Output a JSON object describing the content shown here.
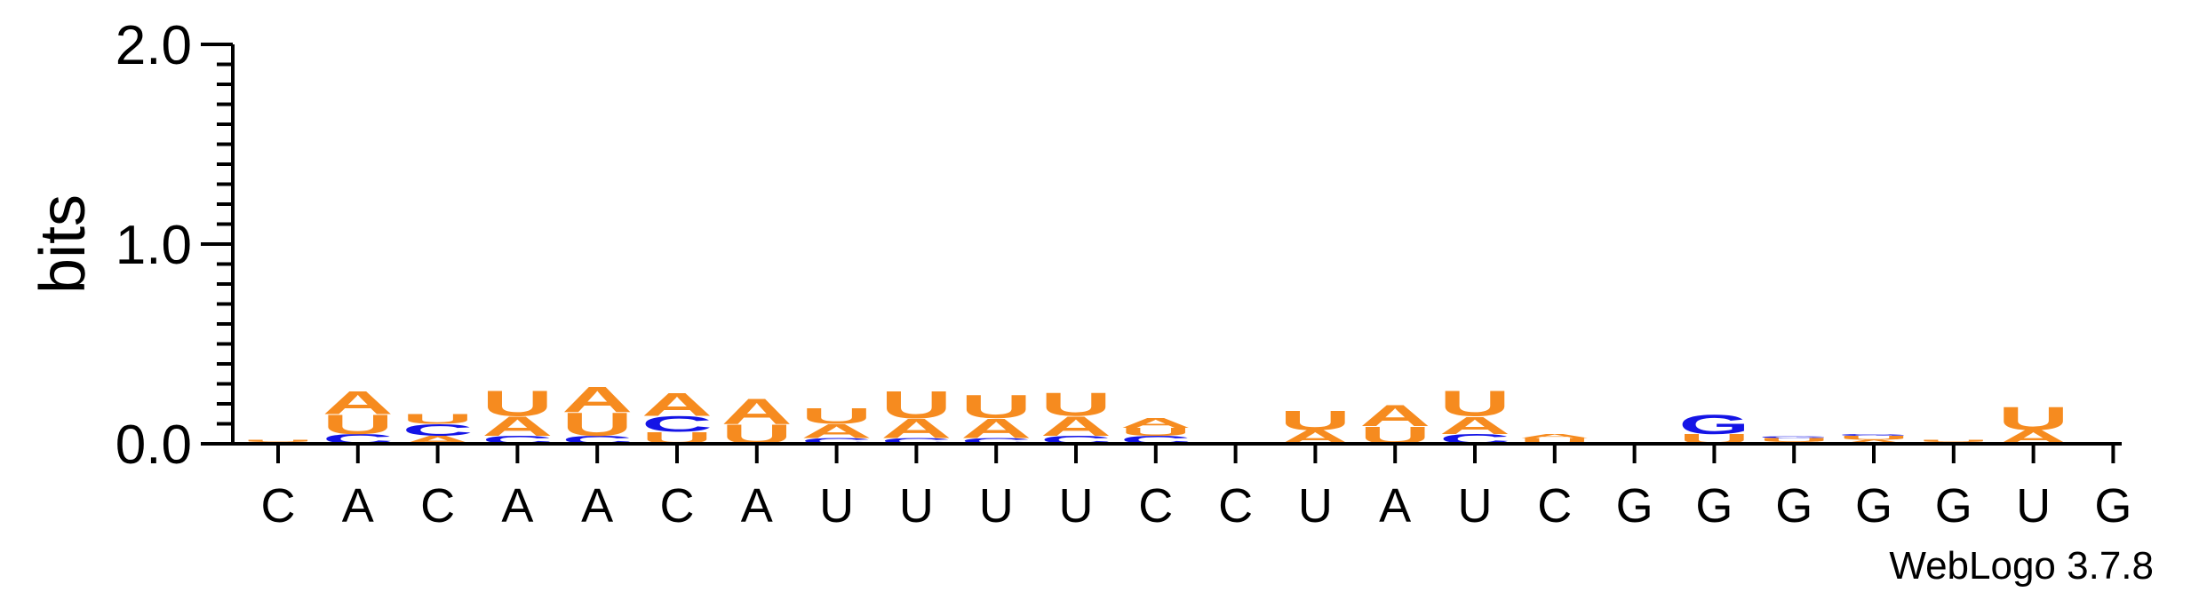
{
  "chart_data": {
    "type": "sequence-logo",
    "ylabel": "bits",
    "ylim": [
      0,
      2.0
    ],
    "yticks": [
      {
        "value": 0.0,
        "label": "0.0"
      },
      {
        "value": 1.0,
        "label": "1.0"
      },
      {
        "value": 2.0,
        "label": "2.0"
      }
    ],
    "x_labels": [
      "C",
      "A",
      "C",
      "A",
      "A",
      "C",
      "A",
      "U",
      "U",
      "U",
      "U",
      "C",
      "C",
      "U",
      "A",
      "U",
      "C",
      "G",
      "G",
      "G",
      "G",
      "G",
      "U",
      "G"
    ],
    "colors": {
      "A": "#f68b1f",
      "U": "#f68b1f",
      "C": "#1414e6",
      "G": "#1414e6"
    },
    "columns": [
      {
        "stack": [
          [
            "A",
            0.01
          ],
          [
            "U",
            0.01
          ]
        ]
      },
      {
        "stack": [
          [
            "C",
            0.05
          ],
          [
            "U",
            0.1
          ],
          [
            "A",
            0.12
          ]
        ]
      },
      {
        "stack": [
          [
            "A",
            0.04
          ],
          [
            "C",
            0.06
          ],
          [
            "U",
            0.05
          ]
        ]
      },
      {
        "stack": [
          [
            "C",
            0.04
          ],
          [
            "A",
            0.1
          ],
          [
            "U",
            0.13
          ]
        ]
      },
      {
        "stack": [
          [
            "C",
            0.04
          ],
          [
            "U",
            0.12
          ],
          [
            "A",
            0.13
          ]
        ]
      },
      {
        "stack": [
          [
            "U",
            0.06
          ],
          [
            "C",
            0.08
          ],
          [
            "A",
            0.12
          ]
        ]
      },
      {
        "stack": [
          [
            "U",
            0.1
          ],
          [
            "A",
            0.13
          ]
        ]
      },
      {
        "stack": [
          [
            "C",
            0.03
          ],
          [
            "A",
            0.07
          ],
          [
            "U",
            0.08
          ]
        ]
      },
      {
        "stack": [
          [
            "C",
            0.03
          ],
          [
            "A",
            0.1
          ],
          [
            "U",
            0.14
          ]
        ]
      },
      {
        "stack": [
          [
            "C",
            0.03
          ],
          [
            "A",
            0.1
          ],
          [
            "U",
            0.12
          ]
        ]
      },
      {
        "stack": [
          [
            "C",
            0.04
          ],
          [
            "A",
            0.1
          ],
          [
            "U",
            0.12
          ]
        ]
      },
      {
        "stack": [
          [
            "C",
            0.04
          ],
          [
            "U",
            0.04
          ],
          [
            "A",
            0.05
          ]
        ]
      },
      {
        "stack": []
      },
      {
        "stack": [
          [
            "A",
            0.07
          ],
          [
            "U",
            0.1
          ]
        ]
      },
      {
        "stack": [
          [
            "U",
            0.09
          ],
          [
            "A",
            0.11
          ]
        ]
      },
      {
        "stack": [
          [
            "C",
            0.05
          ],
          [
            "A",
            0.09
          ],
          [
            "U",
            0.13
          ]
        ]
      },
      {
        "stack": [
          [
            "U",
            0.03
          ],
          [
            "A",
            0.02
          ]
        ]
      },
      {
        "stack": []
      },
      {
        "stack": [
          [
            "U",
            0.05
          ],
          [
            "G",
            0.1
          ]
        ]
      },
      {
        "stack": [
          [
            "A",
            0.01
          ],
          [
            "U",
            0.02
          ],
          [
            "G",
            0.01
          ]
        ]
      },
      {
        "stack": [
          [
            "A",
            0.02
          ],
          [
            "U",
            0.02
          ],
          [
            "G",
            0.01
          ]
        ]
      },
      {
        "stack": [
          [
            "A",
            0.01
          ],
          [
            "U",
            0.01
          ]
        ]
      },
      {
        "stack": [
          [
            "A",
            0.07
          ],
          [
            "U",
            0.12
          ]
        ]
      },
      {
        "stack": []
      }
    ]
  },
  "footer": {
    "version": "WebLogo 3.7.8"
  }
}
